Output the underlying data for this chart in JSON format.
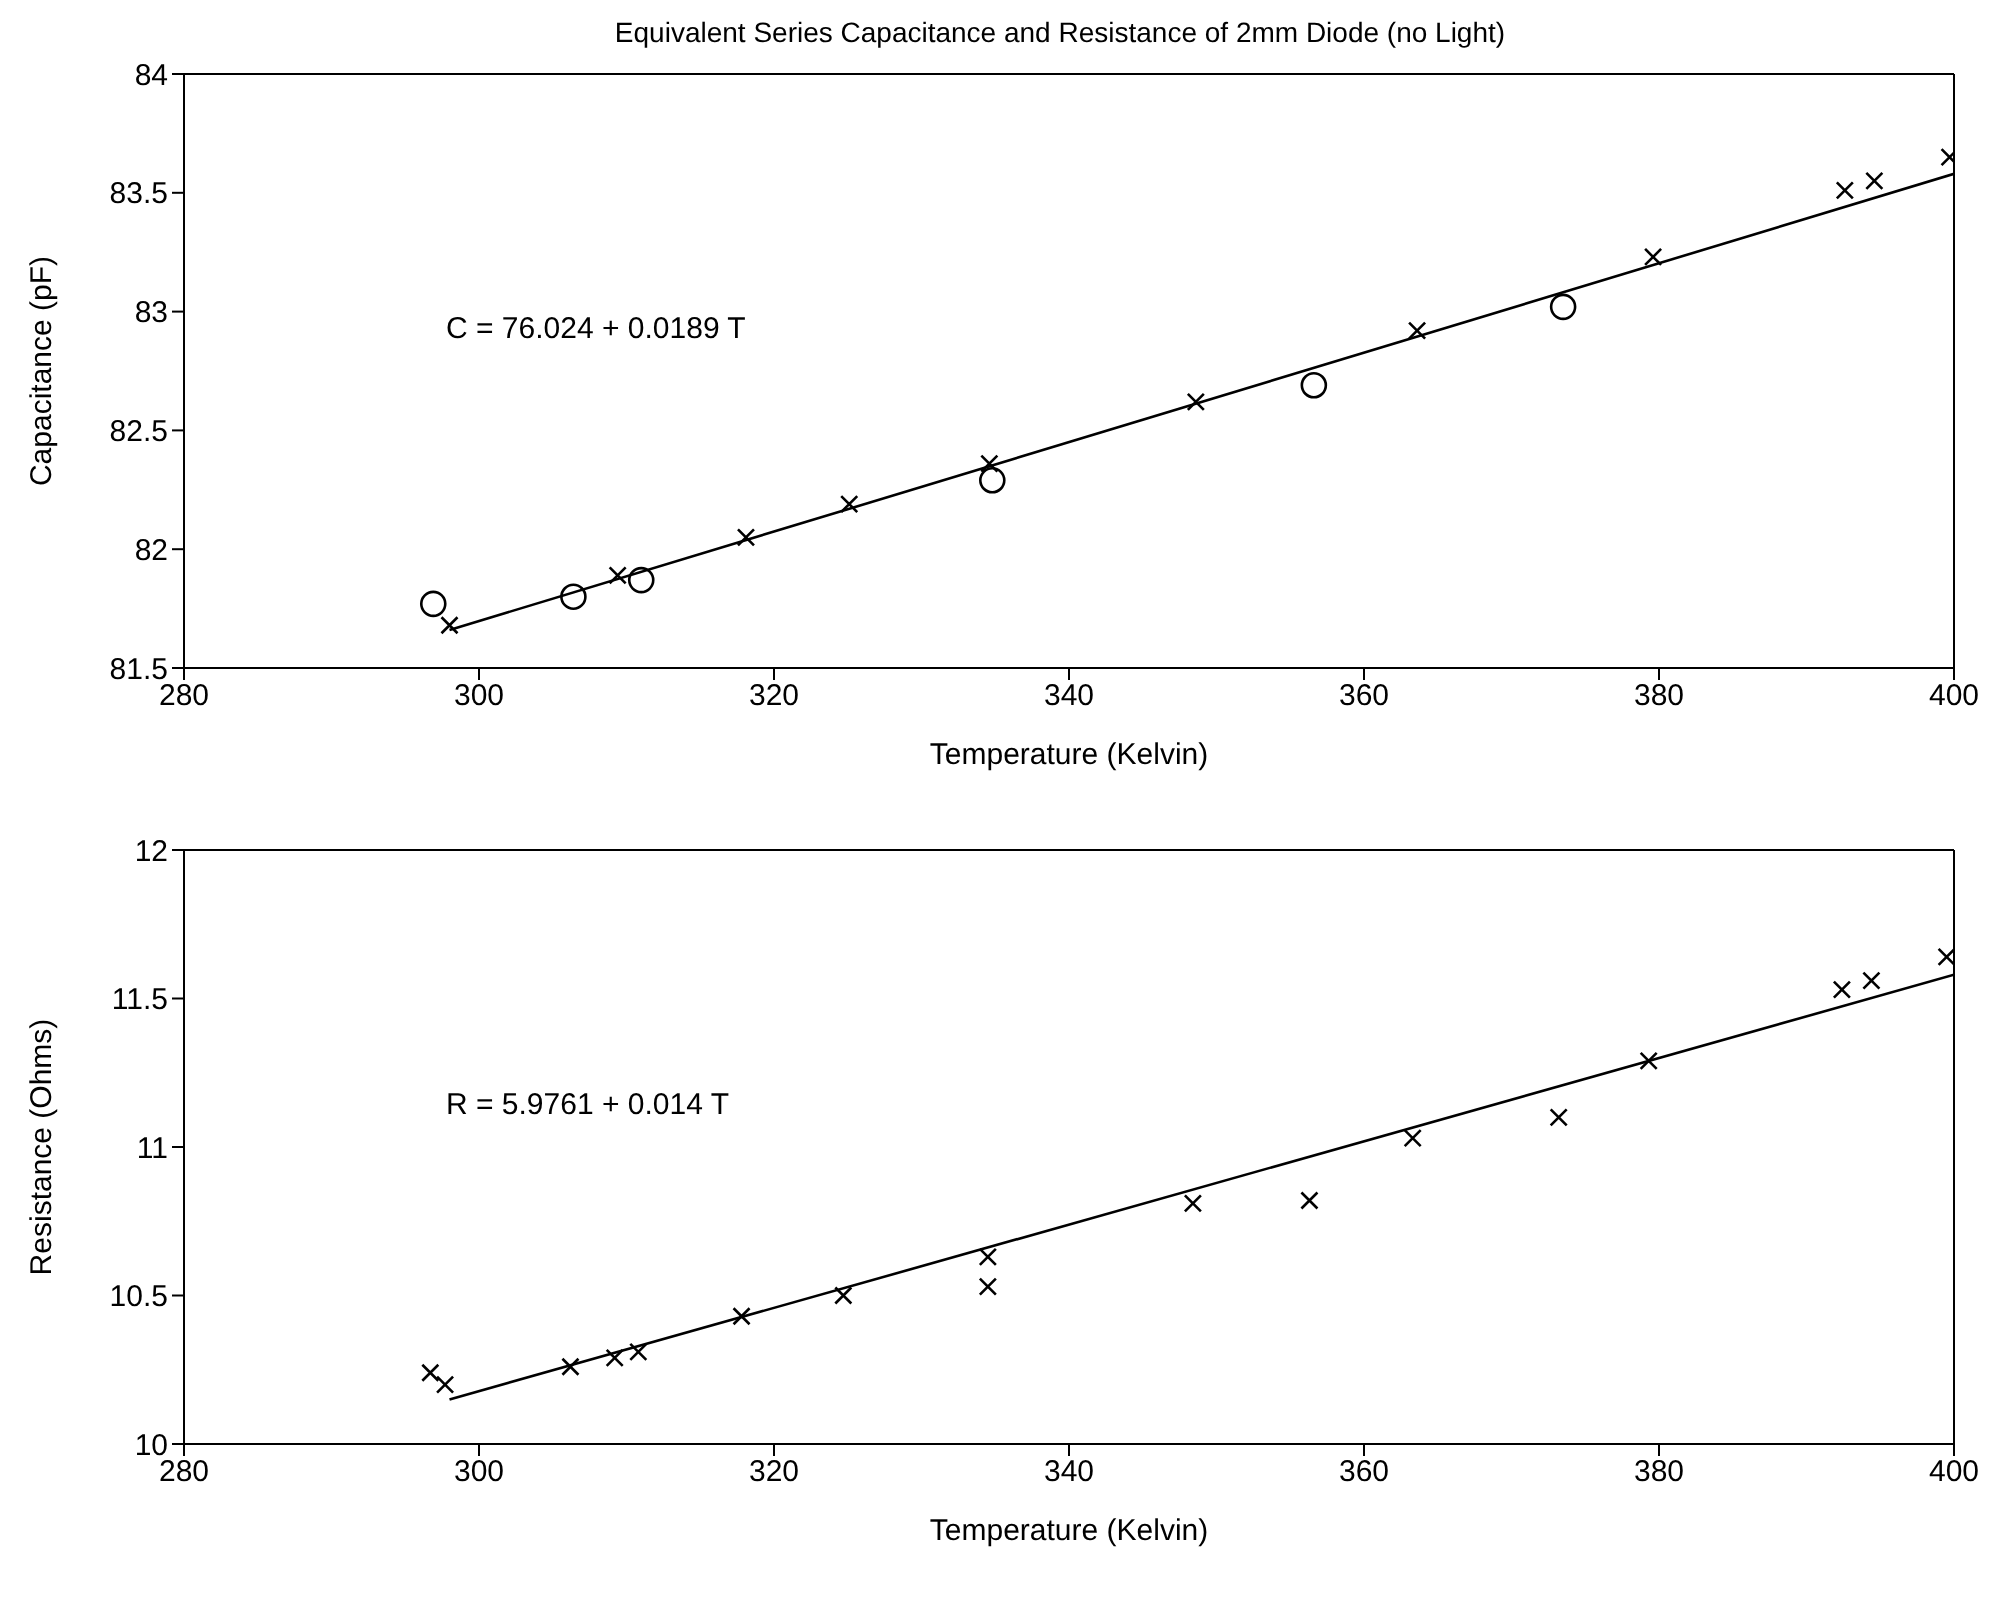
{
  "chart_data": [
    {
      "type": "scatter",
      "title": "Equivalent Series Capacitance and Resistance of 2mm Diode (no Light)",
      "xlabel": "Temperature (Kelvin)",
      "ylabel": "Capacitance (pF)",
      "annotations": [
        "C = 76.024 + 0.0189 T"
      ],
      "xlim": [
        280,
        400
      ],
      "xticks": [
        280,
        300,
        320,
        340,
        360,
        380,
        400
      ],
      "ylim": [
        81.5,
        84
      ],
      "yticks": [
        81.5,
        82,
        82.5,
        83,
        83.5,
        84
      ],
      "series": [
        {
          "marker": "cross",
          "color": "#000000",
          "x": [
            298.0,
            309.4,
            318.1,
            325.1,
            334.6,
            348.6,
            363.6,
            379.6,
            392.6,
            394.6,
            399.7
          ],
          "values": [
            81.68,
            81.89,
            82.05,
            82.19,
            82.36,
            82.62,
            82.92,
            83.23,
            83.51,
            83.55,
            83.65
          ]
        },
        {
          "marker": "circle",
          "color": "#000000",
          "x": [
            296.9,
            306.4,
            311.0,
            334.8,
            356.6,
            373.5
          ],
          "values": [
            81.77,
            81.8,
            81.87,
            82.29,
            82.69,
            83.02
          ]
        },
        {
          "type": "line",
          "marker": "none",
          "color": "#000000",
          "x": [
            298,
            400
          ],
          "values": [
            81.66,
            83.58
          ]
        }
      ]
    },
    {
      "type": "scatter",
      "xlabel": "Temperature (Kelvin)",
      "ylabel": "Resistance (Ohms)",
      "annotations": [
        "R = 5.9761 + 0.014 T"
      ],
      "xlim": [
        280,
        400
      ],
      "xticks": [
        280,
        300,
        320,
        340,
        360,
        380,
        400
      ],
      "ylim": [
        10,
        12
      ],
      "yticks": [
        10,
        10.5,
        11,
        11.5,
        12
      ],
      "series": [
        {
          "marker": "cross",
          "color": "#000000",
          "x": [
            296.7,
            297.7,
            306.2,
            309.2,
            310.8,
            317.8,
            324.7,
            334.5,
            334.5,
            348.4,
            356.3,
            363.3,
            373.2,
            379.3,
            392.4,
            394.4,
            399.5
          ],
          "values": [
            10.24,
            10.2,
            10.26,
            10.29,
            10.31,
            10.43,
            10.5,
            10.63,
            10.53,
            10.81,
            10.82,
            11.03,
            11.1,
            11.29,
            11.53,
            11.56,
            11.64
          ]
        },
        {
          "type": "line",
          "marker": "none",
          "color": "#000000",
          "x": [
            298,
            400
          ],
          "values": [
            10.15,
            11.58
          ]
        }
      ]
    }
  ]
}
